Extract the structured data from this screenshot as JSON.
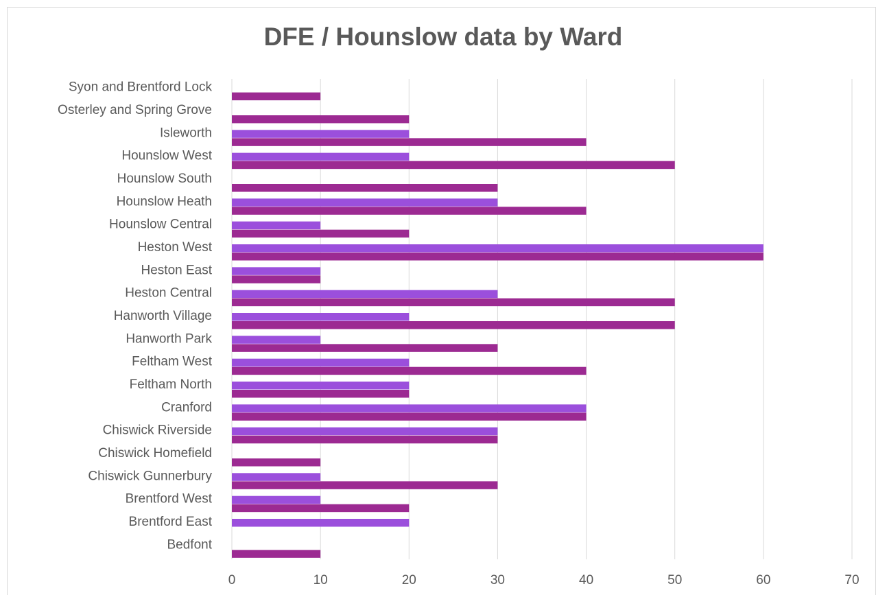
{
  "chart_data": {
    "type": "hbar",
    "title": "DFE / Hounslow data by Ward",
    "categories": [
      "Syon and Brentford Lock",
      "Osterley and Spring Grove",
      "Isleworth",
      "Hounslow West",
      "Hounslow South",
      "Hounslow Heath",
      "Hounslow Central",
      "Heston West",
      "Heston East",
      "Heston Central",
      "Hanworth Village",
      "Hanworth Park",
      "Feltham West",
      "Feltham North",
      "Cranford",
      "Chiswick Riverside",
      "Chiswick Homefield",
      "Chiswick Gunnerbury",
      "Brentford West",
      "Brentford East",
      "Bedfont"
    ],
    "series": [
      {
        "color": "#9b4fdc",
        "values": [
          null,
          null,
          20,
          20,
          null,
          30,
          10,
          60,
          10,
          30,
          20,
          10,
          20,
          20,
          40,
          30,
          null,
          10,
          10,
          20,
          null
        ]
      },
      {
        "color": "#9c2a92",
        "values": [
          10,
          20,
          40,
          50,
          30,
          40,
          20,
          60,
          10,
          50,
          50,
          30,
          40,
          20,
          40,
          30,
          10,
          30,
          20,
          null,
          10
        ]
      }
    ],
    "xlim": [
      0,
      70
    ],
    "xticks": [
      0,
      10,
      20,
      30,
      40,
      50,
      60,
      70
    ],
    "grid": true
  }
}
